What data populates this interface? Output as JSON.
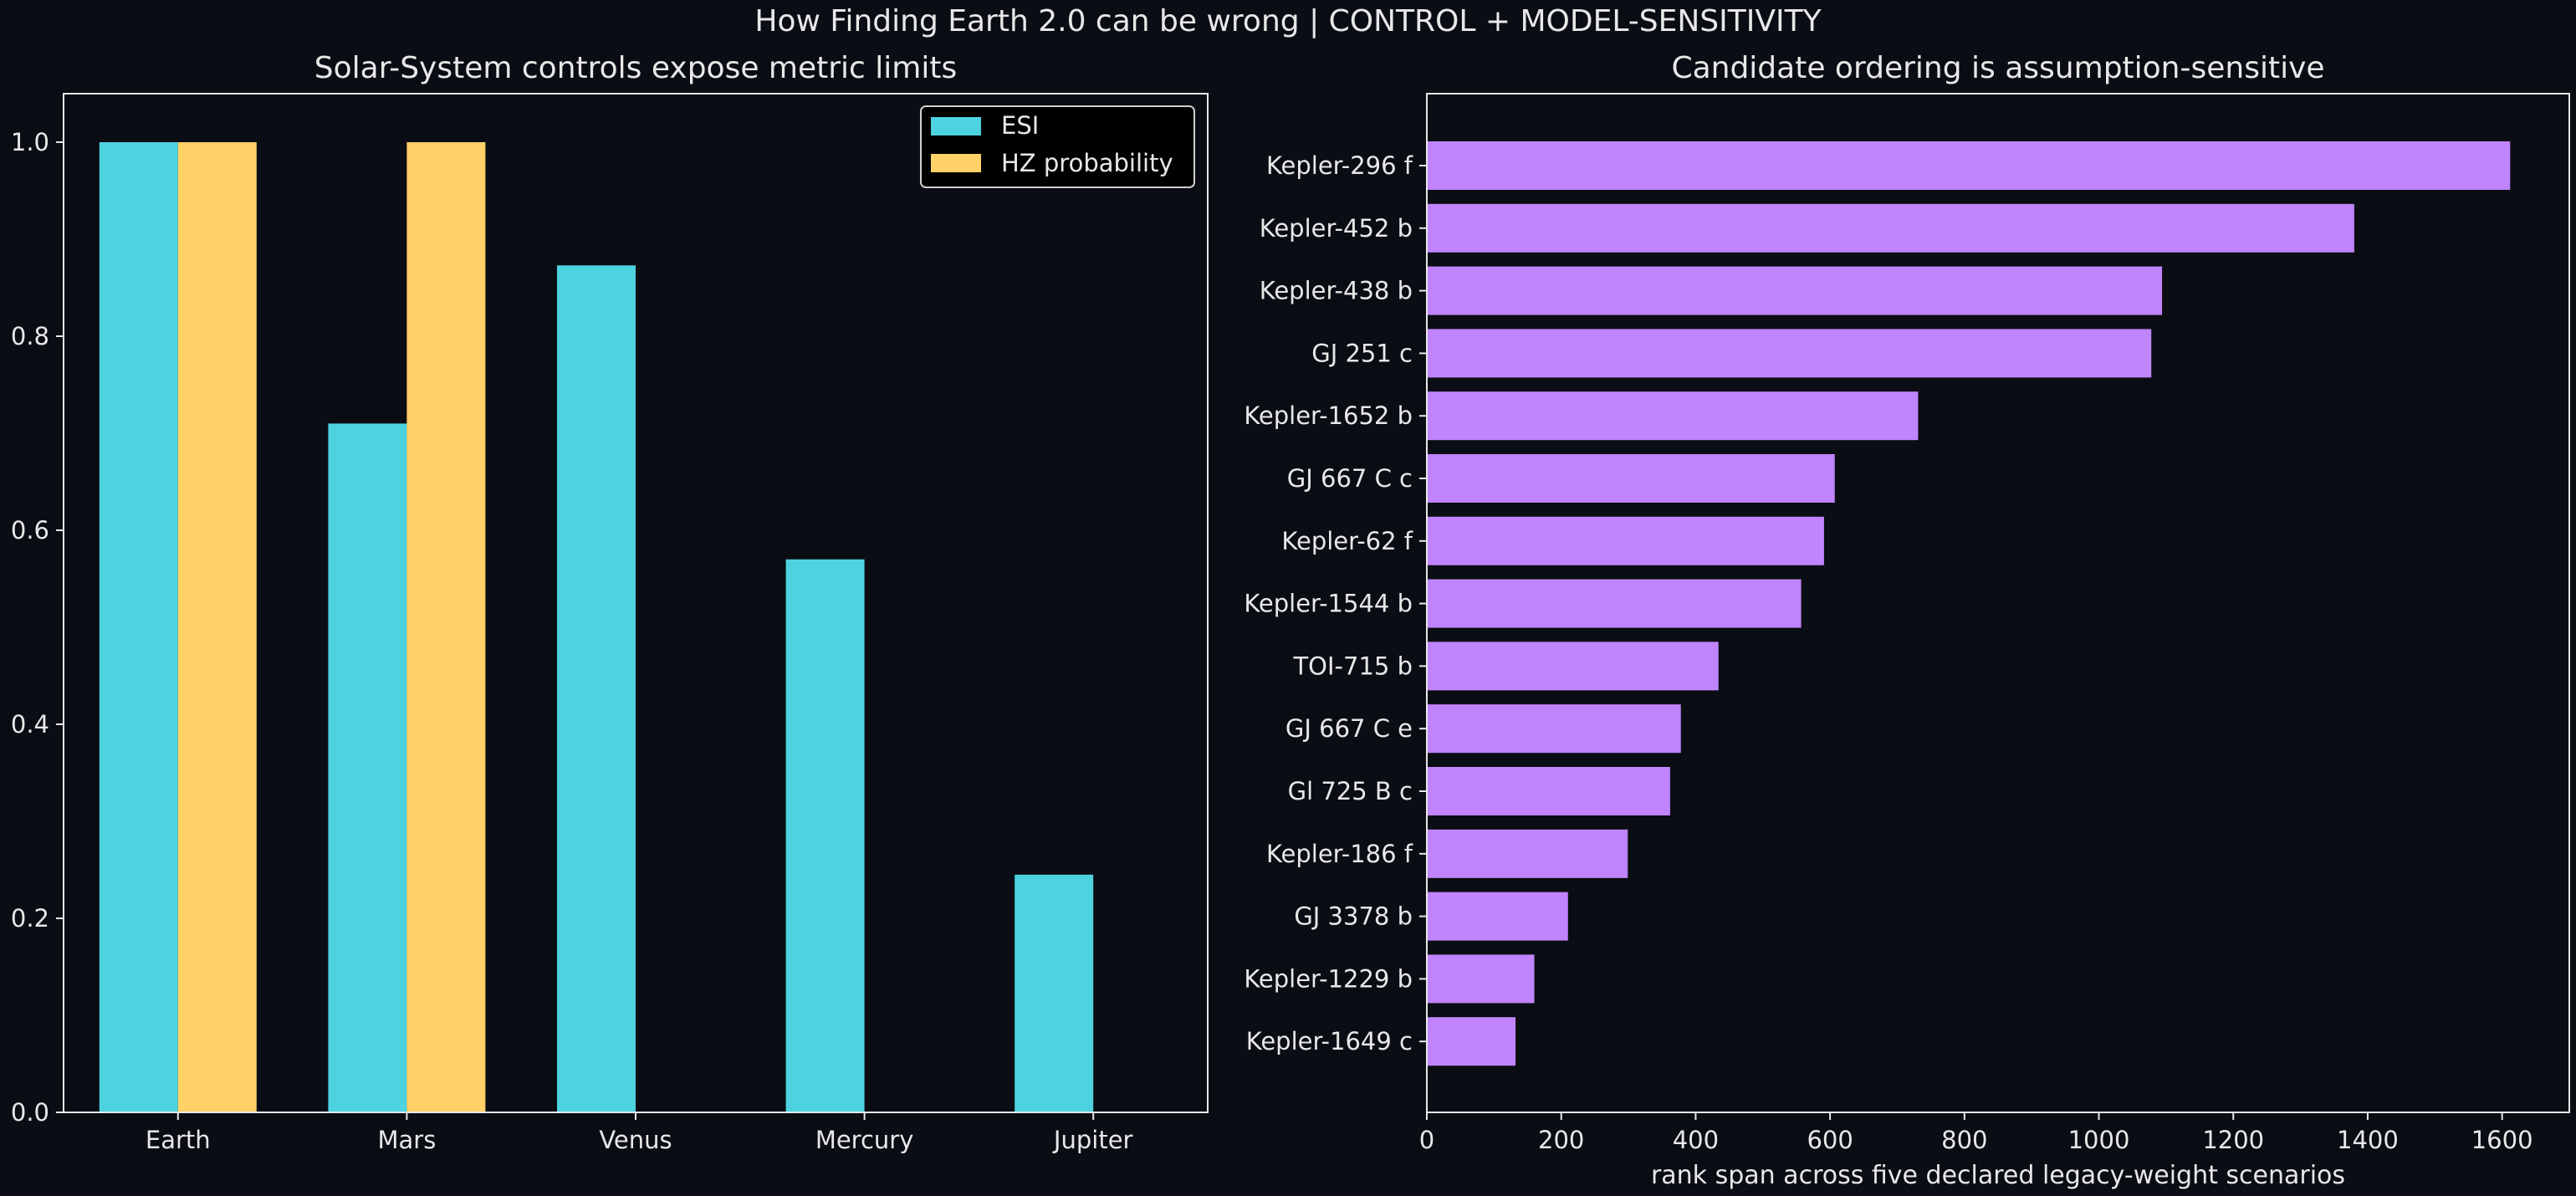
{
  "figure": {
    "title": "How Finding Earth 2.0 can be wrong | CONTROL + MODEL-SENSITIVITY",
    "background": "#0a0d14"
  },
  "chart_data": [
    {
      "type": "bar",
      "title": "Solar-System controls expose metric limits",
      "xlabel": "",
      "ylabel": "",
      "categories": [
        "Earth",
        "Mars",
        "Venus",
        "Mercury",
        "Jupiter"
      ],
      "series": [
        {
          "name": "ESI",
          "color": "#4dd2e0",
          "values": [
            1.0,
            0.71,
            0.873,
            0.57,
            0.245
          ]
        },
        {
          "name": "HZ probability",
          "color": "#ffd166",
          "values": [
            1.0,
            1.0,
            0.0,
            0.0,
            0.0
          ]
        }
      ],
      "ylim": [
        0.0,
        1.05
      ],
      "yticks": [
        0.0,
        0.2,
        0.4,
        0.6,
        0.8,
        1.0
      ],
      "ytick_labels": [
        "0.0",
        "0.2",
        "0.4",
        "0.6",
        "0.8",
        "1.0"
      ],
      "grid": false,
      "legend": "top-right"
    },
    {
      "type": "bar",
      "orientation": "horizontal",
      "title": "Candidate ordering is assumption-sensitive",
      "xlabel": "rank span across five declared legacy-weight scenarios",
      "ylabel": "",
      "categories": [
        "Kepler-296 f",
        "Kepler-452 b",
        "Kepler-438 b",
        "GJ 251 c",
        "Kepler-1652 b",
        "GJ 667 C c",
        "Kepler-62 f",
        "Kepler-1544 b",
        "TOI-715 b",
        "GJ 667 C e",
        "Gl 725 B c",
        "Kepler-186 f",
        "GJ 3378 b",
        "Kepler-1229 b",
        "Kepler-1649 c"
      ],
      "values": [
        1612,
        1380,
        1094,
        1078,
        731,
        607,
        591,
        557,
        434,
        378,
        362,
        299,
        210,
        160,
        132
      ],
      "color": "#c084fc",
      "xlim": [
        0,
        1700
      ],
      "xticks": [
        0,
        200,
        400,
        600,
        800,
        1000,
        1200,
        1400,
        1600
      ],
      "xtick_labels": [
        "0",
        "200",
        "400",
        "600",
        "800",
        "1000",
        "1200",
        "1400",
        "1600"
      ],
      "grid": false
    }
  ]
}
